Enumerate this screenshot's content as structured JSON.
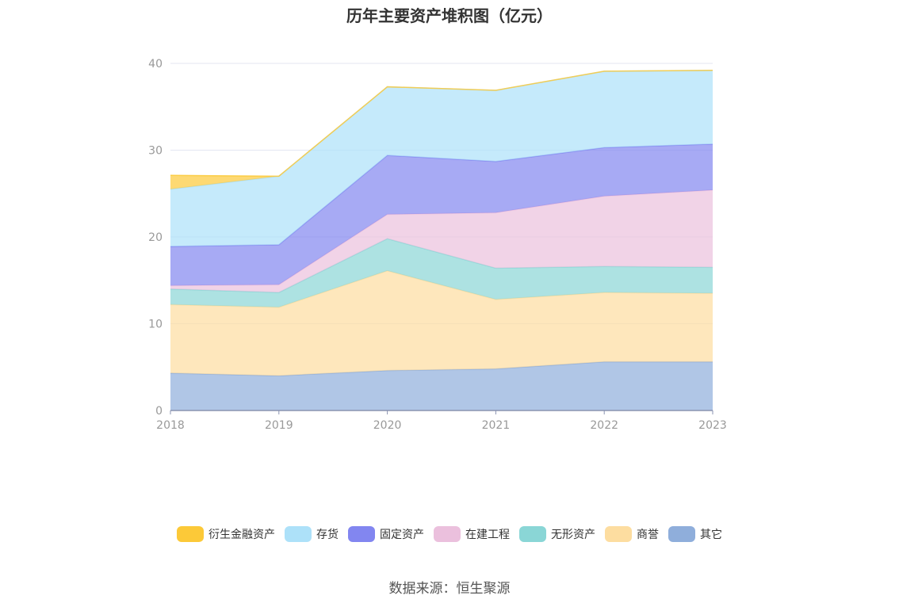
{
  "chart_data": {
    "type": "area",
    "stacked": true,
    "title": "历年主要资产堆积图（亿元）",
    "categories": [
      "2018",
      "2019",
      "2020",
      "2021",
      "2022",
      "2023"
    ],
    "ylim": [
      0,
      40
    ],
    "yticks": [
      0,
      10,
      20,
      30,
      40
    ],
    "grid": true,
    "legend_position": "bottom",
    "series": [
      {
        "name": "其它",
        "color": "#8FAEDB",
        "values": [
          4.3,
          4.0,
          4.6,
          4.8,
          5.6,
          5.6
        ]
      },
      {
        "name": "商誉",
        "color": "#FDDDA0",
        "values": [
          7.9,
          7.9,
          11.5,
          8.0,
          8.0,
          7.9
        ]
      },
      {
        "name": "无形资产",
        "color": "#8AD6D6",
        "values": [
          1.8,
          1.7,
          3.7,
          3.6,
          3.0,
          3.0
        ]
      },
      {
        "name": "在建工程",
        "color": "#EBC0DD",
        "values": [
          0.4,
          0.9,
          2.8,
          6.4,
          8.1,
          8.9
        ]
      },
      {
        "name": "固定资产",
        "color": "#8286F0",
        "values": [
          4.5,
          4.6,
          6.8,
          5.9,
          5.6,
          5.3
        ]
      },
      {
        "name": "存货",
        "color": "#ADE1F9",
        "values": [
          6.6,
          7.9,
          7.9,
          8.2,
          8.8,
          8.5
        ]
      },
      {
        "name": "衍生金融资产",
        "color": "#FCC938",
        "values": [
          1.6,
          0.0,
          0.0,
          0.0,
          0.0,
          0.0
        ]
      }
    ],
    "legend_order": [
      "衍生金融资产",
      "存货",
      "固定资产",
      "在建工程",
      "无形资产",
      "商誉",
      "其它"
    ]
  },
  "source": "数据来源：恒生聚源"
}
